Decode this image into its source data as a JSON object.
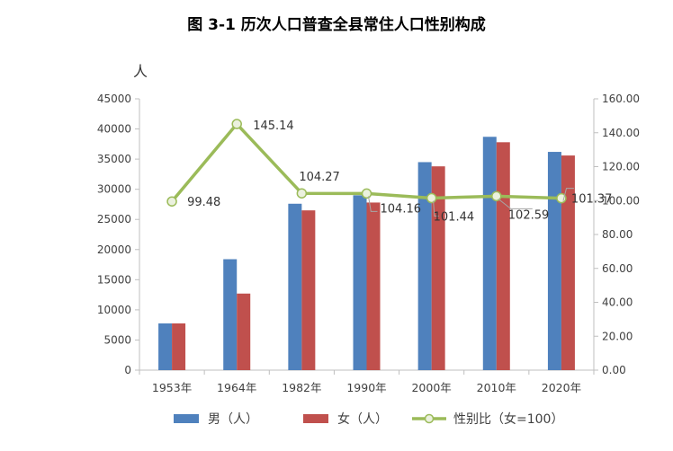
{
  "chart_data": {
    "type": "bar+line",
    "title": "图 3-1  历次人口普查全县常住人口性别构成",
    "ylabel_left": "人",
    "categories": [
      "1953年",
      "1964年",
      "1982年",
      "1990年",
      "2000年",
      "2010年",
      "2020年"
    ],
    "y_left": {
      "min": 0,
      "max": 45000,
      "ticks": [
        "0",
        "5000",
        "10000",
        "15000",
        "20000",
        "25000",
        "30000",
        "35000",
        "40000",
        "45000"
      ]
    },
    "y_right": {
      "min": 0,
      "max": 160,
      "ticks": [
        "0.00",
        "20.00",
        "40.00",
        "60.00",
        "80.00",
        "100.00",
        "120.00",
        "140.00",
        "160.00"
      ]
    },
    "series": [
      {
        "name": "男（人）",
        "type": "bar",
        "axis": "left",
        "color": "#4f81bd",
        "values": [
          7750,
          18400,
          27600,
          29000,
          34500,
          38700,
          36200
        ]
      },
      {
        "name": "女（人）",
        "type": "bar",
        "axis": "left",
        "color": "#c0504d",
        "values": [
          7750,
          12700,
          26500,
          27800,
          33800,
          37800,
          35600
        ]
      },
      {
        "name": "性别比（女=100）",
        "type": "line",
        "axis": "right",
        "color": "#9bbb59",
        "values": [
          99.48,
          145.14,
          104.27,
          104.16,
          101.44,
          102.59,
          101.37
        ],
        "labels": [
          "99.48",
          "145.14",
          "104.27",
          "104.16",
          "101.44",
          "102.59",
          "101.37"
        ]
      }
    ]
  }
}
